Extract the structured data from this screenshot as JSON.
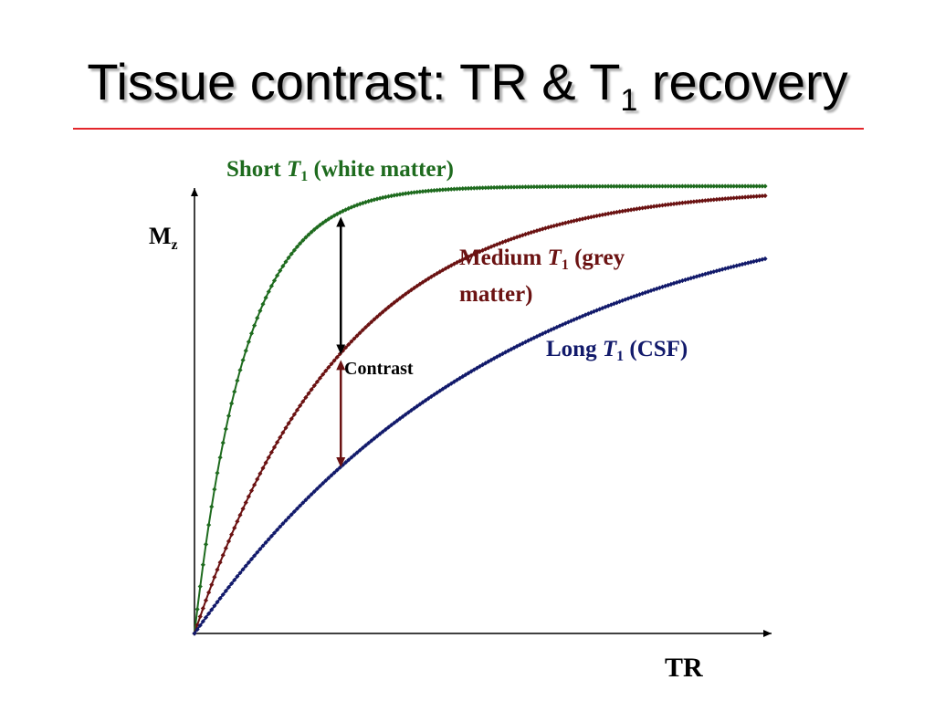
{
  "slide": {
    "title_main": "Tissue contrast: TR & T",
    "title_sub": "1",
    "title_tail": " recovery"
  },
  "chart_data": {
    "type": "line",
    "title": "",
    "xlabel": "TR",
    "ylabel": "M",
    "ylabel_sub": "z",
    "xlim": [
      0,
      100
    ],
    "ylim": [
      0,
      1
    ],
    "grid": false,
    "markers": "small diamonds along each curve",
    "series": [
      {
        "key": "short",
        "label_prefix": "Short ",
        "label_italic": "T",
        "label_sub": "1",
        "label_suffix": " (white matter)",
        "color": "#1e6b1e",
        "t1": 9
      },
      {
        "key": "medium",
        "label_prefix": "Medium ",
        "label_italic": "T",
        "label_sub": "1",
        "label_suffix": " (grey",
        "label_line2": "matter)",
        "color": "#6b1212",
        "t1": 26
      },
      {
        "key": "long",
        "label_prefix": "Long ",
        "label_italic": "T",
        "label_sub": "1",
        "label_suffix": " (CSF)",
        "color": "#121a6b",
        "t1": 55
      }
    ],
    "contrast_annotation": {
      "label": "Contrast",
      "tr": 25
    },
    "annotation_colors": {
      "upper_arrow": "#000000",
      "lower_arrow": "#6b1212"
    }
  }
}
